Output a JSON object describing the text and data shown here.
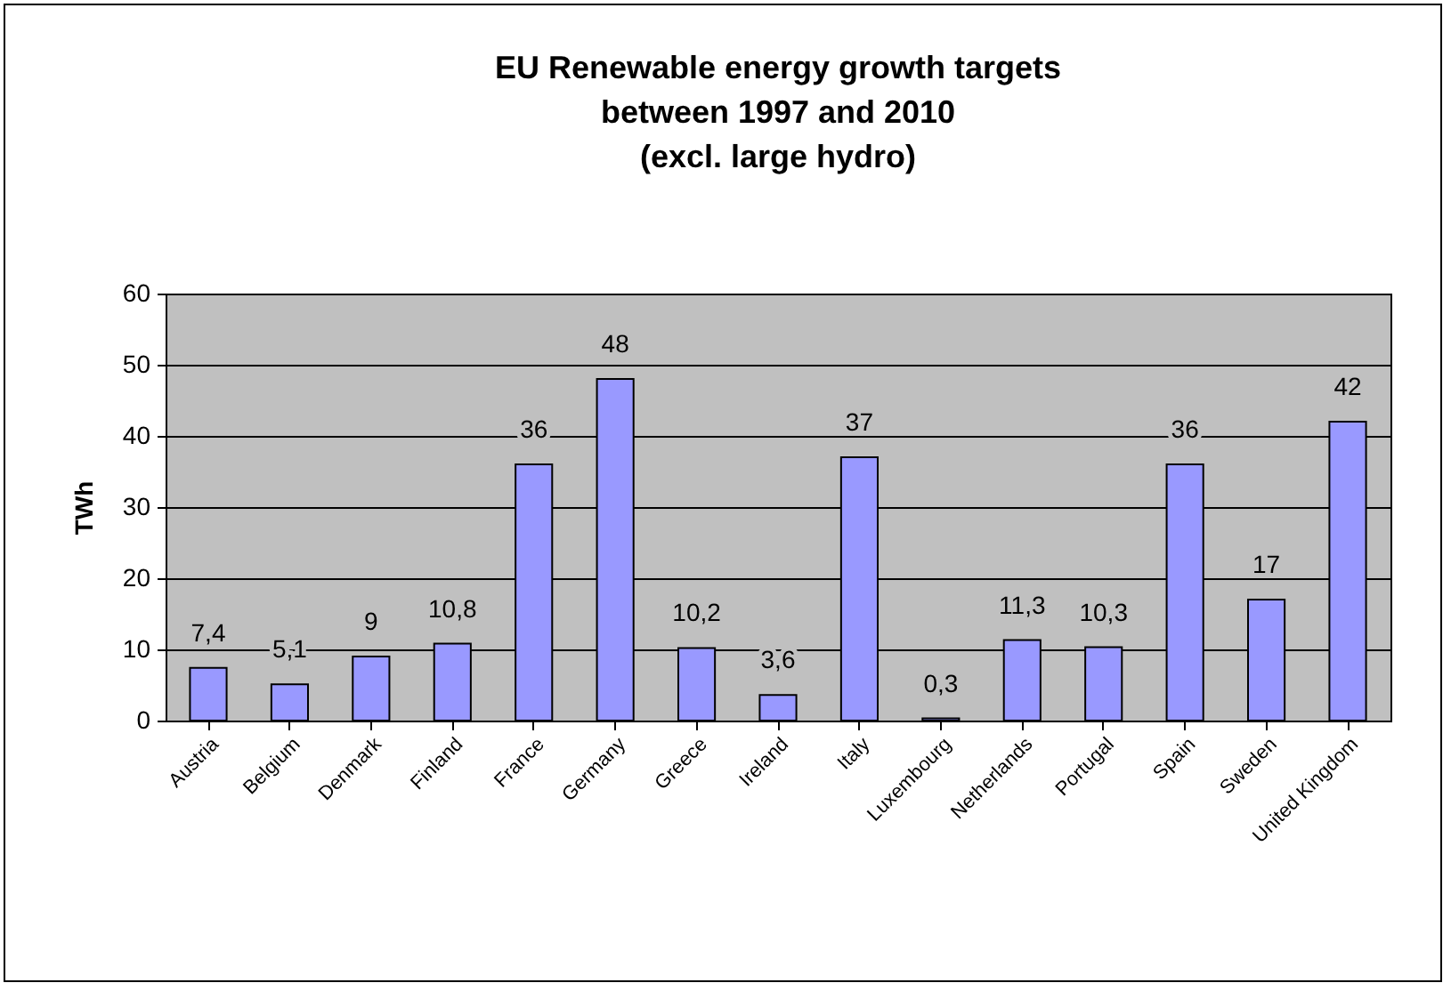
{
  "chart_data": {
    "type": "bar",
    "title": "EU Renewable energy growth targets\nbetween 1997 and 2010\n(excl. large hydro)",
    "ylabel": "TWh",
    "categories": [
      "Austria",
      "Belgium",
      "Denmark",
      "Finland",
      "France",
      "Germany",
      "Greece",
      "Ireland",
      "Italy",
      "Luxembourg",
      "Netherlands",
      "Portugal",
      "Spain",
      "Sweden",
      "United Kingdom"
    ],
    "values": [
      7.4,
      5.1,
      9,
      10.8,
      36,
      48,
      10.2,
      3.6,
      37,
      0.3,
      11.3,
      10.3,
      36,
      17,
      42
    ],
    "value_labels": [
      "7,4",
      "5,1",
      "9",
      "10,8",
      "36",
      "48",
      "10,2",
      "3,6",
      "37",
      "0,3",
      "11,3",
      "10,3",
      "36",
      "17",
      "42"
    ],
    "color": "#9999ff",
    "ylim": [
      0,
      60
    ],
    "yticks": [
      0,
      10,
      20,
      30,
      40,
      50,
      60
    ],
    "grid": "y"
  }
}
